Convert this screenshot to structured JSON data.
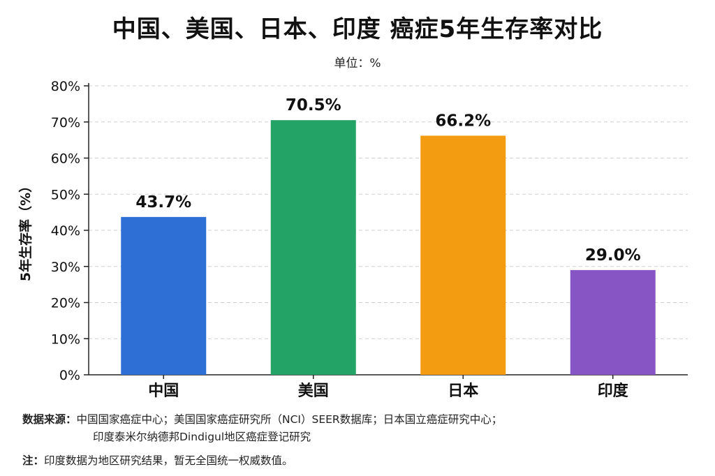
{
  "chart_data": {
    "type": "bar",
    "title": "中国、美国、日本、印度 癌症5年生存率对比",
    "subtitle": "单位：%",
    "ylabel": "5年生存率（%）",
    "xlabel": "",
    "categories": [
      "中国",
      "美国",
      "日本",
      "印度"
    ],
    "values": [
      43.7,
      70.5,
      66.2,
      29.0
    ],
    "data_labels": [
      "43.7%",
      "70.5%",
      "66.2%",
      "29.0%"
    ],
    "colors": [
      "#2e6fd6",
      "#24a366",
      "#f39c12",
      "#8855c4"
    ],
    "ylim": [
      0,
      80
    ],
    "yticks": [
      0,
      10,
      20,
      30,
      40,
      50,
      60,
      70,
      80
    ],
    "ytick_labels": [
      "0%",
      "10%",
      "20%",
      "30%",
      "40%",
      "50%",
      "60%",
      "70%",
      "80%"
    ],
    "grid": true,
    "legend": "none"
  },
  "footer": {
    "source_label": "数据来源：",
    "source_line1": "中国国家癌症中心；美国国家癌症研究所（NCI）SEER数据库；日本国立癌症研究中心；",
    "source_line2": "印度泰米尔纳德邦Dindigul地区癌症登记研究",
    "note_label": "注：",
    "note_text": "印度数据为地区研究结果，暂无全国统一权威数值。"
  }
}
